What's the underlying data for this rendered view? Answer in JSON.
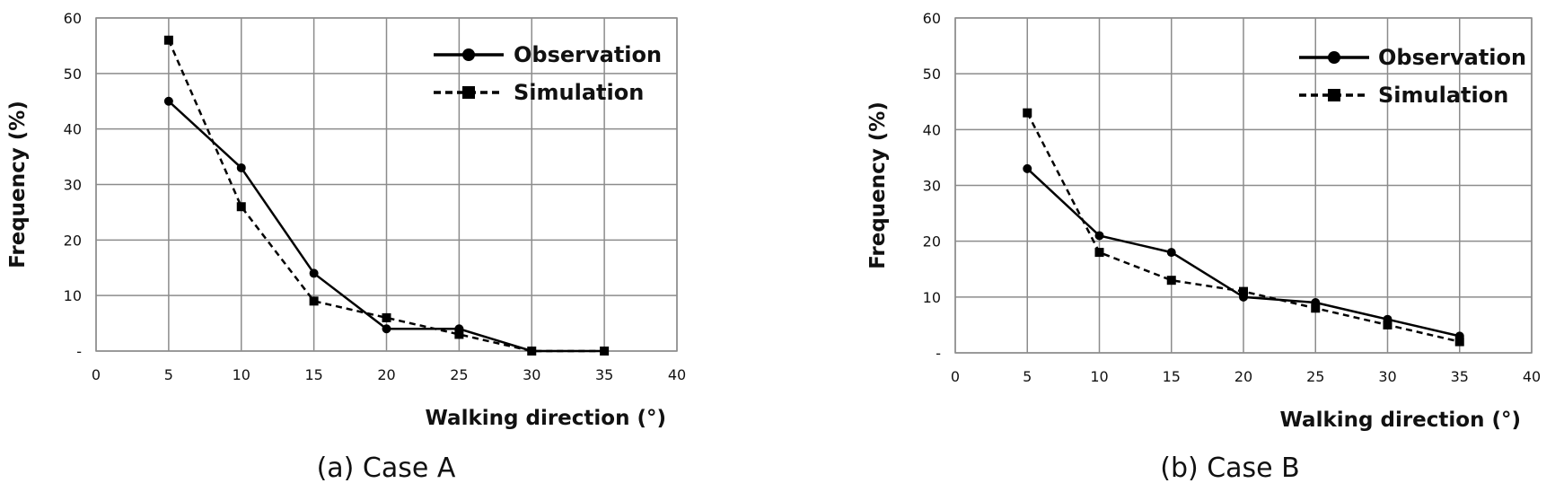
{
  "chart_data": [
    {
      "type": "line",
      "caption": "(a) Case A",
      "xlabel": "Walking direction (°)",
      "ylabel": "Frequency (%)",
      "xlim": [
        0,
        40
      ],
      "ylim": [
        0,
        60
      ],
      "xticks": [
        "0",
        "5",
        "10",
        "15",
        "20",
        "25",
        "30",
        "35",
        "40"
      ],
      "yticks": [
        "-",
        "10",
        "20",
        "30",
        "40",
        "50",
        "60"
      ],
      "grid": true,
      "legend_position": "top-right",
      "series": [
        {
          "name": "Observation",
          "marker": "circle",
          "line": "solid",
          "x": [
            5,
            10,
            15,
            20,
            25,
            30,
            35
          ],
          "values": [
            45,
            33,
            14,
            4,
            4,
            0,
            0
          ]
        },
        {
          "name": "Simulation",
          "marker": "square",
          "line": "dashed",
          "x": [
            5,
            10,
            15,
            20,
            25,
            30,
            35
          ],
          "values": [
            56,
            26,
            9,
            6,
            3,
            0,
            0
          ]
        }
      ]
    },
    {
      "type": "line",
      "caption": "(b) Case B",
      "xlabel": "Walking direction (°)",
      "ylabel": "Frequency (%)",
      "xlim": [
        0,
        40
      ],
      "ylim": [
        0,
        60
      ],
      "xticks": [
        "0",
        "5",
        "10",
        "15",
        "20",
        "25",
        "30",
        "35",
        "40"
      ],
      "yticks": [
        "-",
        "10",
        "20",
        "30",
        "40",
        "50",
        "60"
      ],
      "grid": true,
      "legend_position": "top-right",
      "series": [
        {
          "name": "Observation",
          "marker": "circle",
          "line": "solid",
          "x": [
            5,
            10,
            15,
            20,
            25,
            30,
            35
          ],
          "values": [
            33,
            21,
            18,
            10,
            9,
            6,
            3
          ]
        },
        {
          "name": "Simulation",
          "marker": "square",
          "line": "dashed",
          "x": [
            5,
            10,
            15,
            20,
            25,
            30,
            35
          ],
          "values": [
            43,
            18,
            13,
            11,
            8,
            5,
            2
          ]
        }
      ]
    }
  ],
  "colors": {
    "line": "#000000",
    "grid": "#8c8c8c",
    "background": "#ffffff"
  }
}
